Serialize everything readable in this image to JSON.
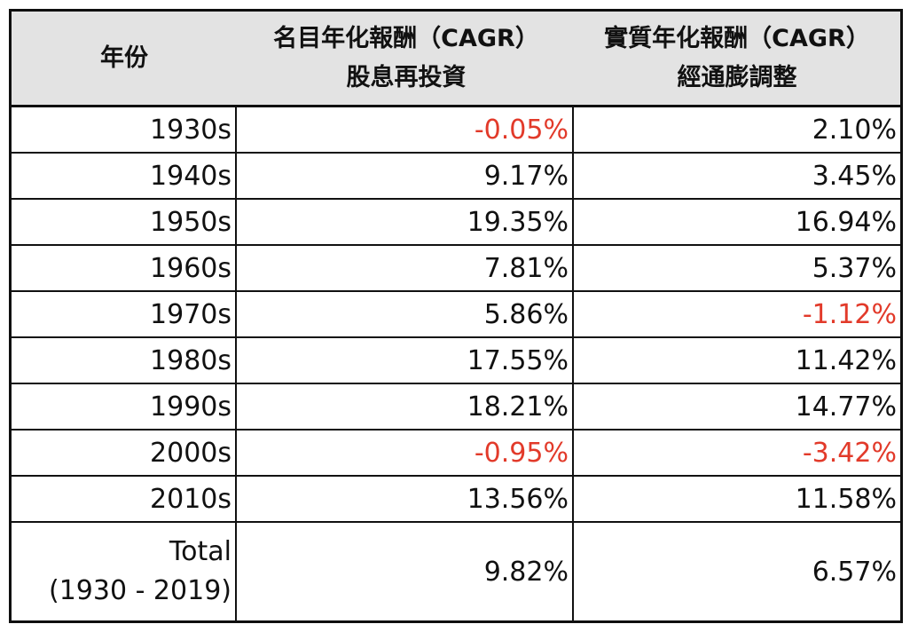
{
  "headers": {
    "year": "年份",
    "nominal_line1": "名目年化報酬（CAGR）",
    "nominal_line2": "股息再投資",
    "real_line1": "實質年化報酬（CAGR）",
    "real_line2": "經通膨調整"
  },
  "rows": [
    {
      "year": "1930s",
      "nominal": "-0.05%",
      "real": "2.10%",
      "nominal_negative": true,
      "real_negative": false
    },
    {
      "year": "1940s",
      "nominal": "9.17%",
      "real": "3.45%",
      "nominal_negative": false,
      "real_negative": false
    },
    {
      "year": "1950s",
      "nominal": "19.35%",
      "real": "16.94%",
      "nominal_negative": false,
      "real_negative": false
    },
    {
      "year": "1960s",
      "nominal": "7.81%",
      "real": "5.37%",
      "nominal_negative": false,
      "real_negative": false
    },
    {
      "year": "1970s",
      "nominal": "5.86%",
      "real": "-1.12%",
      "nominal_negative": false,
      "real_negative": true
    },
    {
      "year": "1980s",
      "nominal": "17.55%",
      "real": "11.42%",
      "nominal_negative": false,
      "real_negative": false
    },
    {
      "year": "1990s",
      "nominal": "18.21%",
      "real": "14.77%",
      "nominal_negative": false,
      "real_negative": false
    },
    {
      "year": "2000s",
      "nominal": "-0.95%",
      "real": "-3.42%",
      "nominal_negative": true,
      "real_negative": true
    },
    {
      "year": "2010s",
      "nominal": "13.56%",
      "real": "11.58%",
      "nominal_negative": false,
      "real_negative": false
    }
  ],
  "total": {
    "label_line1": "Total",
    "label_line2": "(1930 - 2019)",
    "nominal": "9.82%",
    "real": "6.57%"
  },
  "colors": {
    "header_bg": "#e3e3e3",
    "negative": "#e23a2a",
    "border": "#0f0f0f"
  }
}
